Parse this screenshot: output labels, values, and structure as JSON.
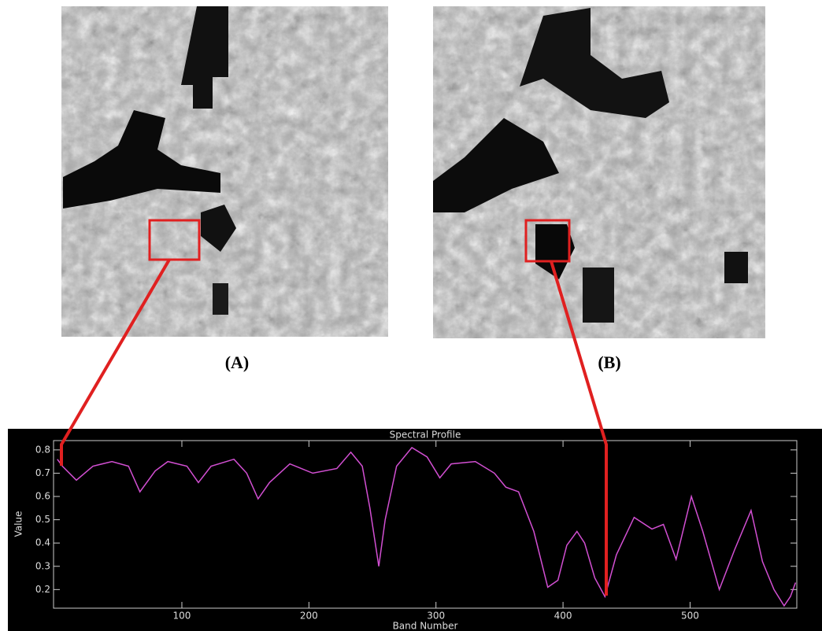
{
  "panels": [
    "(A)",
    "(B)"
  ],
  "chart_data": {
    "type": "line",
    "title": "Spectral Profile",
    "x_label": "Band Number",
    "y_label": "Value",
    "x": [
      2,
      6,
      17,
      30,
      45,
      58,
      67,
      79,
      89,
      104,
      113,
      123,
      141,
      151,
      160,
      169,
      185,
      203,
      222,
      233,
      242,
      248,
      255,
      260,
      269,
      281,
      293,
      303,
      312,
      331,
      346,
      355,
      365,
      377,
      388,
      396,
      403,
      411,
      417,
      425,
      433,
      442,
      456,
      470,
      479,
      489,
      501,
      510,
      523,
      535,
      548,
      557,
      566,
      574,
      579,
      583
    ],
    "series": [
      {
        "color": "#d24fd2",
        "values": [
          0.76,
          0.73,
          0.67,
          0.73,
          0.75,
          0.73,
          0.62,
          0.71,
          0.75,
          0.73,
          0.66,
          0.73,
          0.76,
          0.7,
          0.59,
          0.66,
          0.74,
          0.7,
          0.72,
          0.79,
          0.73,
          0.55,
          0.3,
          0.5,
          0.73,
          0.81,
          0.77,
          0.68,
          0.74,
          0.75,
          0.7,
          0.64,
          0.62,
          0.45,
          0.21,
          0.24,
          0.39,
          0.45,
          0.4,
          0.25,
          0.17,
          0.35,
          0.51,
          0.46,
          0.48,
          0.33,
          0.6,
          0.45,
          0.2,
          0.37,
          0.54,
          0.32,
          0.2,
          0.13,
          0.17,
          0.23
        ]
      }
    ],
    "xlim": [
      -1,
      584
    ],
    "xticks": [
      100,
      200,
      300,
      400,
      500
    ],
    "ylim": [
      0.12,
      0.84
    ],
    "yticks": [
      0.2,
      0.3,
      0.4,
      0.5,
      0.6,
      0.7,
      0.8
    ]
  }
}
